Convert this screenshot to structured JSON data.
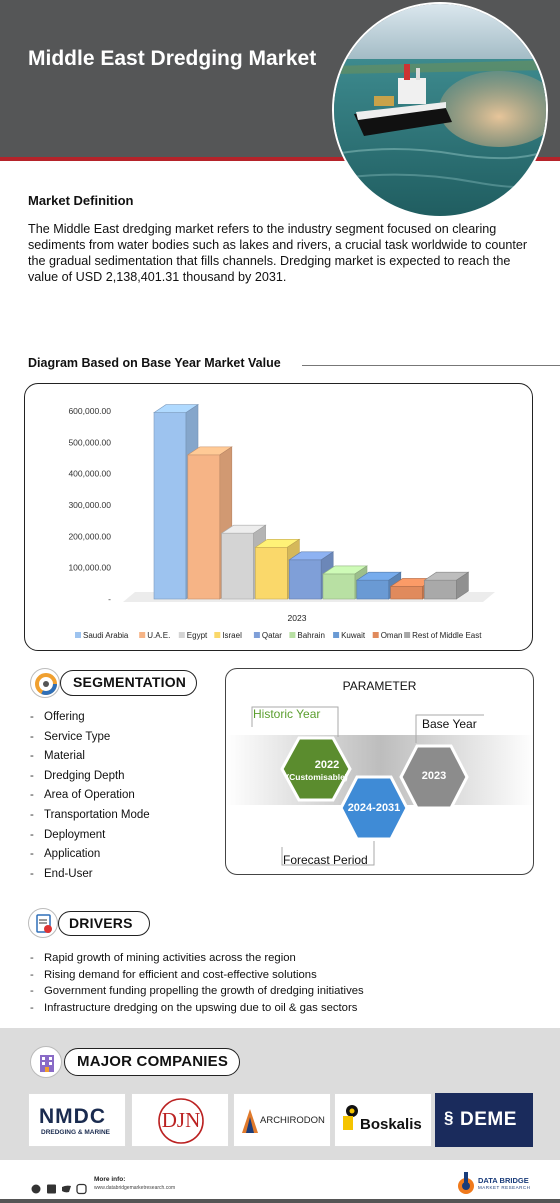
{
  "header": {
    "title": "Middle East Dredging Market"
  },
  "definition": {
    "heading": "Market Definition",
    "text": "The Middle East dredging market refers to the industry segment focused on clearing sediments from water bodies such as lakes and rivers, a crucial task worldwide to counter the gradual sedimentation that fills channels. Dredging market is expected to reach the value of USD 2,138,401.31 thousand by 2031."
  },
  "diagram": {
    "heading": "Diagram Based on Base Year Market Value"
  },
  "chart_data": {
    "type": "bar",
    "categories": [
      "2023"
    ],
    "series": [
      {
        "name": "Saudi Arabia",
        "value": 595000,
        "color": "#9dc3ef"
      },
      {
        "name": "U.A.E.",
        "value": 460000,
        "color": "#f6b486"
      },
      {
        "name": "Egypt",
        "value": 210000,
        "color": "#d4d4d4"
      },
      {
        "name": "Israel",
        "value": 165000,
        "color": "#fad86a"
      },
      {
        "name": "Qatar",
        "value": 125000,
        "color": "#7f9fd8"
      },
      {
        "name": "Bahrain",
        "value": 80000,
        "color": "#b8e0a3"
      },
      {
        "name": "Kuwait",
        "value": 60000,
        "color": "#6a9ad4"
      },
      {
        "name": "Oman",
        "value": 40000,
        "color": "#e08a5c"
      },
      {
        "name": "Rest of Middle East",
        "value": 60000,
        "color": "#a9a9a9"
      }
    ],
    "yticks": [
      "600,000.00",
      "500,000.00",
      "400,000.00",
      "300,000.00",
      "200,000.00",
      "100,000.00",
      "-"
    ],
    "ylim": [
      0,
      600000
    ],
    "xlabel_category": "2023",
    "legend_position": "bottom"
  },
  "segmentation": {
    "heading": "SEGMENTATION",
    "items": [
      "Offering",
      "Service Type",
      "Material",
      "Dredging Depth",
      "Area of Operation",
      "Transportation Mode",
      "Deployment",
      "Application",
      "End-User"
    ]
  },
  "parameter": {
    "title": "PARAMETER",
    "historic_label": "Historic Year",
    "historic_year": "2022",
    "historic_note": "(Customisable)",
    "forecast_label": "Forecast Period",
    "forecast_period": "2024-2031",
    "base_label": "Base Year",
    "base_year": "2023"
  },
  "drivers": {
    "heading": "DRIVERS",
    "items": [
      "Rapid growth of mining activities across the region",
      "Rising demand for efficient and cost-effective solutions",
      "Government funding propelling the growth of dredging initiatives",
      "Infrastructure dredging on the upswing due to oil & gas sectors"
    ]
  },
  "companies": {
    "heading": "MAJOR COMPANIES",
    "logos": {
      "nmdc_main": "NMDC",
      "nmdc_sub": "DREDGING & MARINE",
      "djn": "DJN",
      "archirodon": "ARCHIRODON",
      "boskalis": "Boskalis",
      "deme": "DEME"
    }
  },
  "footer": {
    "more_info": "More info:",
    "url": "www.databridgemarketresearch.com",
    "brand_main": "DATA BRIDGE",
    "brand_sub": "MARKET RESEARCH"
  }
}
